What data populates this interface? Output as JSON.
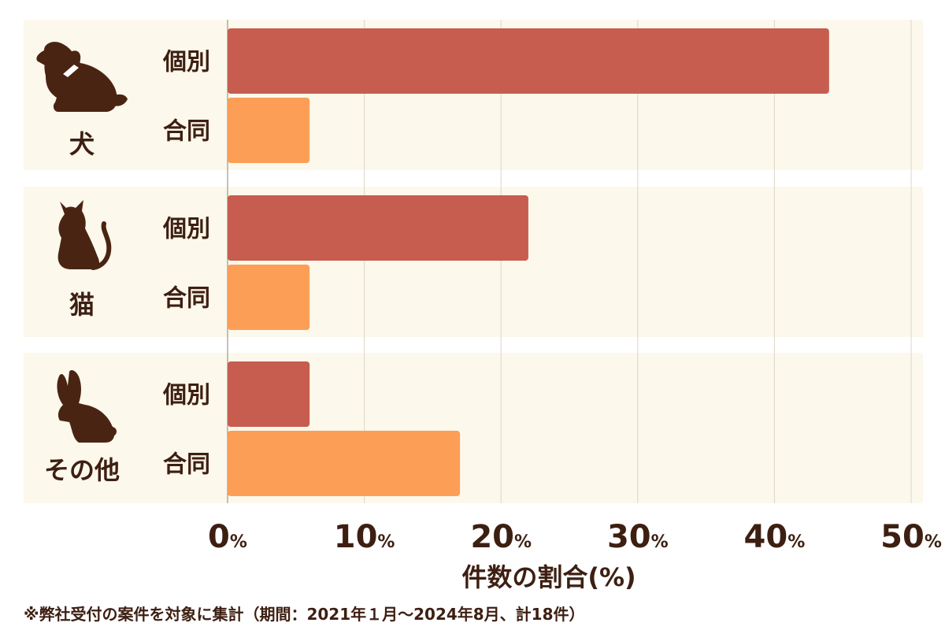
{
  "chart_data": {
    "type": "bar",
    "orientation": "horizontal",
    "groups": [
      {
        "name": "犬",
        "icon": "dog-icon"
      },
      {
        "name": "猫",
        "icon": "cat-icon"
      },
      {
        "name": "その他",
        "icon": "rabbit-icon"
      }
    ],
    "series": [
      {
        "name": "個別",
        "color": "#c65d4e",
        "values": [
          44,
          22,
          6
        ]
      },
      {
        "name": "合同",
        "color": "#fd9e57",
        "values": [
          6,
          6,
          17
        ]
      }
    ],
    "x_ticks": [
      {
        "num": "0",
        "unit": "%"
      },
      {
        "num": "10",
        "unit": "%"
      },
      {
        "num": "20",
        "unit": "%"
      },
      {
        "num": "30",
        "unit": "%"
      },
      {
        "num": "40",
        "unit": "%"
      },
      {
        "num": "50",
        "unit": "%"
      }
    ],
    "xlim": [
      0,
      50
    ],
    "xlabel": "件数の割合(%)",
    "grid": true
  },
  "colors": {
    "panel": "#fcf8ec",
    "grid": "#ddd6c8",
    "text": "#3d1f12",
    "icon": "#4a2412"
  },
  "footnote": "※弊社受付の案件を対象に集計（期間：2021年１月～2024年8月、計18件）"
}
